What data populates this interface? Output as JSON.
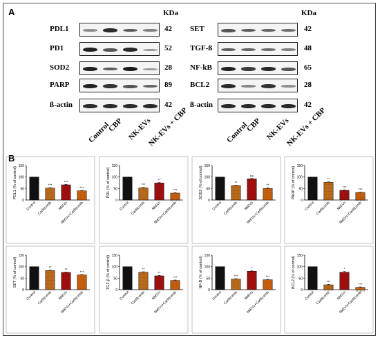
{
  "panel_a": {
    "label": "A",
    "kda_label": "KDa",
    "lanes": [
      "Control",
      "CBP",
      "NK-EVs",
      "NK-EVs + CBP"
    ],
    "left_blots": [
      {
        "name": "PDL1",
        "size": "42",
        "bands": [
          0.25,
          0.85,
          0.55,
          0.35
        ]
      },
      {
        "name": "PD1",
        "size": "52",
        "bands": [
          0.9,
          0.6,
          0.85,
          0.2
        ]
      },
      {
        "name": "SOD2",
        "size": "28",
        "bands": [
          0.9,
          0.55,
          0.95,
          0.2
        ]
      },
      {
        "name": "PARP",
        "size": "89",
        "bands": [
          0.9,
          0.8,
          0.6,
          0.5
        ]
      },
      {
        "name": "ß-actin",
        "size": "42",
        "bands": [
          0.85,
          0.85,
          0.85,
          0.85
        ]
      }
    ],
    "right_blots": [
      {
        "name": "SET",
        "size": "42",
        "bands": [
          0.6,
          0.55,
          0.5,
          0.45
        ]
      },
      {
        "name": "TGF-ß",
        "size": "48",
        "bands": [
          0.55,
          0.5,
          0.45,
          0.35
        ]
      },
      {
        "name": "NF-kB",
        "size": "65",
        "bands": [
          0.9,
          0.75,
          0.85,
          0.6
        ]
      },
      {
        "name": "BCL2",
        "size": "28",
        "bands": [
          0.85,
          0.3,
          0.8,
          0.25
        ]
      },
      {
        "name": "ß-actin",
        "size": "42",
        "bands": [
          0.85,
          0.85,
          0.85,
          0.85
        ]
      }
    ]
  },
  "panel_b": {
    "label": "B"
  },
  "chart_data": [
    {
      "type": "bar",
      "ylabel": "PDL1 (% of control)",
      "categories": [
        "Control",
        "Carfilzomib",
        "NkEVs",
        "NkEVs+Carfilzomib"
      ],
      "values": [
        100,
        52,
        66,
        40
      ],
      "errors": [
        0,
        2,
        2,
        2
      ],
      "significance": [
        "",
        "***",
        "***",
        "***"
      ],
      "ylim": [
        0,
        150
      ],
      "yticks": [
        0,
        50,
        100,
        150
      ]
    },
    {
      "type": "bar",
      "ylabel": "PD1 (% of control)",
      "categories": [
        "Control",
        "Carfilzomib",
        "NkEVs",
        "NkEVs+Carfilzomib"
      ],
      "values": [
        100,
        53,
        74,
        30
      ],
      "errors": [
        0,
        2,
        3,
        2
      ],
      "significance": [
        "",
        "***",
        "**",
        "***"
      ],
      "ylim": [
        0,
        150
      ],
      "yticks": [
        0,
        50,
        100,
        150
      ]
    },
    {
      "type": "bar",
      "ylabel": "SOD2 (% of control)",
      "categories": [
        "Control",
        "Carfilzomib",
        "NkEVs",
        "NkEVs+Carfilzomib"
      ],
      "values": [
        100,
        63,
        92,
        50
      ],
      "errors": [
        0,
        2,
        3,
        4
      ],
      "significance": [
        "",
        "**",
        "ns",
        "**"
      ],
      "ylim": [
        0,
        150
      ],
      "yticks": [
        0,
        50,
        100,
        150
      ]
    },
    {
      "type": "bar",
      "ylabel": "PARP (% of control)",
      "categories": [
        "Control",
        "Carfilzomib",
        "NkEVs",
        "NkEVs+Carfilzomib"
      ],
      "values": [
        100,
        77,
        42,
        33
      ],
      "errors": [
        0,
        2,
        2,
        2
      ],
      "significance": [
        "",
        "**",
        "***",
        "***"
      ],
      "ylim": [
        0,
        150
      ],
      "yticks": [
        0,
        50,
        100,
        150
      ]
    },
    {
      "type": "bar",
      "ylabel": "SET (% of control)",
      "categories": [
        "Control",
        "Carfilzomib",
        "NkEVs",
        "NkEVs+Carfilzomib"
      ],
      "values": [
        100,
        83,
        75,
        64
      ],
      "errors": [
        0,
        2,
        2,
        2
      ],
      "significance": [
        "",
        "**",
        "**",
        "***"
      ],
      "ylim": [
        0,
        150
      ],
      "yticks": [
        0,
        50,
        100,
        150
      ]
    },
    {
      "type": "bar",
      "ylabel": "TGF-β (% of control)",
      "categories": [
        "Control",
        "Carfilzomib",
        "NkEVs",
        "NkEVs+Carfilzomib"
      ],
      "values": [
        100,
        76,
        60,
        40
      ],
      "errors": [
        0,
        2,
        2,
        2
      ],
      "significance": [
        "",
        "**",
        "**",
        "***"
      ],
      "ylim": [
        0,
        150
      ],
      "yticks": [
        0,
        50,
        100,
        150
      ]
    },
    {
      "type": "bar",
      "ylabel": "NF-B (% of control)",
      "categories": [
        "Control",
        "Carfilzomib",
        "NkEVs",
        "NkEVs+Carfilzomib"
      ],
      "values": [
        100,
        46,
        80,
        43
      ],
      "errors": [
        0,
        2,
        3,
        2
      ],
      "significance": [
        "",
        "***",
        "*",
        "***"
      ],
      "ylim": [
        0,
        150
      ],
      "yticks": [
        0,
        50,
        100,
        150
      ]
    },
    {
      "type": "bar",
      "ylabel": "BCL2 (% of control)",
      "categories": [
        "Control",
        "Carfilzomib",
        "NkEVs",
        "NkEVs+Carfilzomib"
      ],
      "values": [
        100,
        21,
        76,
        10
      ],
      "errors": [
        0,
        2,
        3,
        2
      ],
      "significance": [
        "",
        "***",
        "*",
        "***"
      ],
      "ylim": [
        0,
        150
      ],
      "yticks": [
        0,
        50,
        100,
        150
      ]
    }
  ],
  "colors": {
    "control": "#111111",
    "carfilzomib": "#b96a1c",
    "nkevs": "#9e1010",
    "combo": "#c8600e"
  }
}
